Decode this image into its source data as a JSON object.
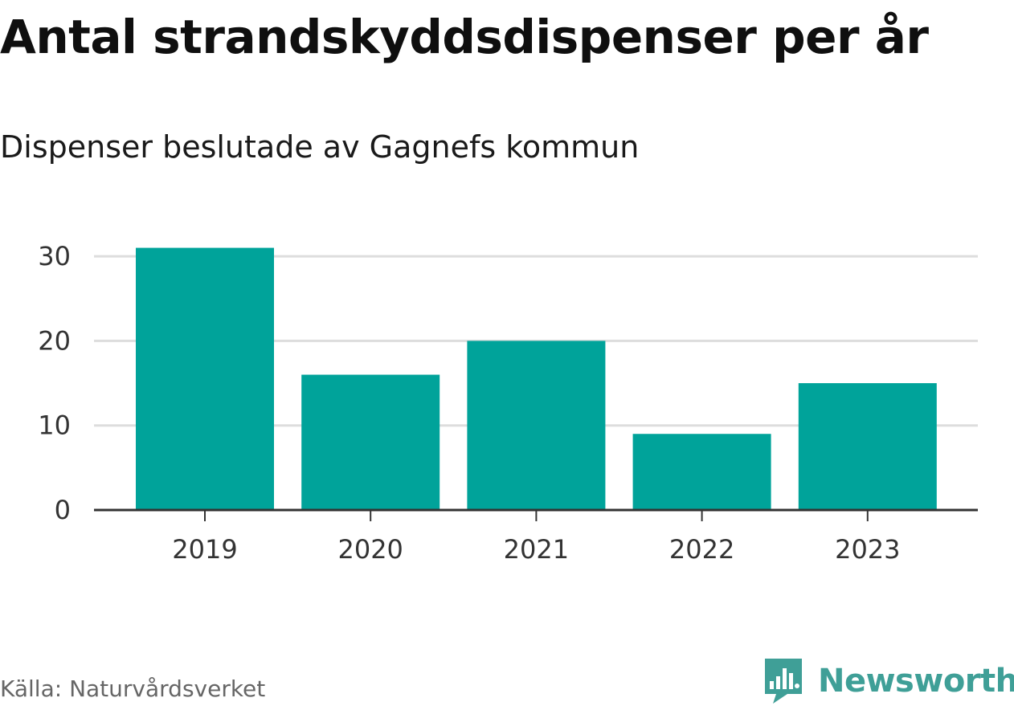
{
  "title": "Antal strandskyddsdispenser per år",
  "subtitle": "Dispenser beslutade av Gagnefs kommun",
  "source": "Källa: Naturvårdsverket",
  "brand": {
    "name": "Newsworthy",
    "color": "#3f9f97",
    "icon": "newsworthy-logo-icon"
  },
  "colors": {
    "bar": "#00a39a",
    "grid": "#dddddd",
    "axis": "#333333"
  },
  "chart_data": {
    "type": "bar",
    "title": "Antal strandskyddsdispenser per år",
    "subtitle": "Dispenser beslutade av Gagnefs kommun",
    "xlabel": "",
    "ylabel": "",
    "categories": [
      "2019",
      "2020",
      "2021",
      "2022",
      "2023"
    ],
    "values": [
      31,
      16,
      20,
      9,
      15
    ],
    "yticks": [
      0,
      10,
      20,
      30
    ],
    "ylim": [
      0,
      32
    ],
    "grid": true,
    "legend": "none"
  }
}
